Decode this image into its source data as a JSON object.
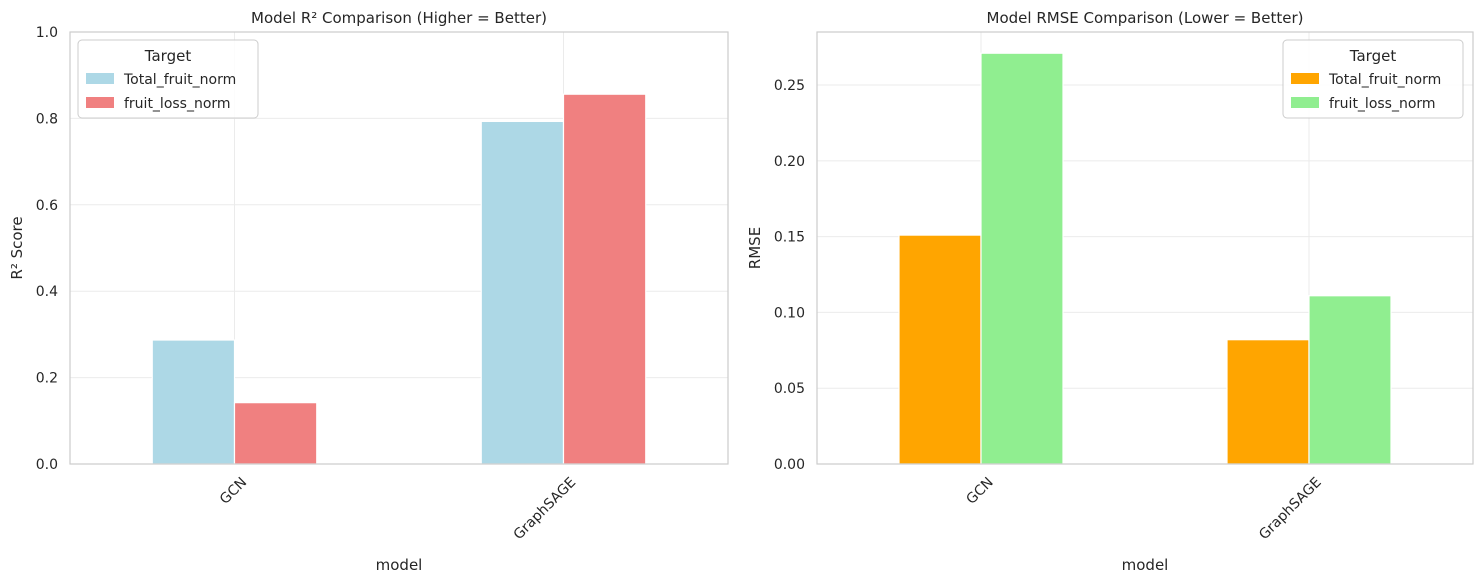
{
  "chart_data": [
    {
      "type": "bar",
      "title": "Model R² Comparison (Higher = Better)",
      "xlabel": "model",
      "ylabel": "R² Score",
      "categories": [
        "GCN",
        "GraphSAGE"
      ],
      "ylim": [
        0,
        1.0
      ],
      "yticks": [
        0.0,
        0.2,
        0.4,
        0.6,
        0.8,
        1.0
      ],
      "ytick_labels": [
        "0.0",
        "0.2",
        "0.4",
        "0.6",
        "0.8",
        "1.0"
      ],
      "grid": true,
      "legend": {
        "title": "Target",
        "placement": "top-left"
      },
      "series": [
        {
          "name": "Total_fruit_norm",
          "color": "#add8e6",
          "values": [
            0.287,
            0.793
          ]
        },
        {
          "name": "fruit_loss_norm",
          "color": "#f08080",
          "values": [
            0.142,
            0.856
          ]
        }
      ]
    },
    {
      "type": "bar",
      "title": "Model RMSE Comparison (Lower = Better)",
      "xlabel": "model",
      "ylabel": "RMSE",
      "categories": [
        "GCN",
        "GraphSAGE"
      ],
      "ylim": [
        0,
        0.285
      ],
      "yticks": [
        0.0,
        0.05,
        0.1,
        0.15,
        0.2,
        0.25
      ],
      "ytick_labels": [
        "0.00",
        "0.05",
        "0.10",
        "0.15",
        "0.20",
        "0.25"
      ],
      "grid": true,
      "legend": {
        "title": "Target",
        "placement": "top-right"
      },
      "series": [
        {
          "name": "Total_fruit_norm",
          "color": "#ffa500",
          "values": [
            0.151,
            0.082
          ]
        },
        {
          "name": "fruit_loss_norm",
          "color": "#90ee90",
          "values": [
            0.271,
            0.111
          ]
        }
      ]
    }
  ]
}
